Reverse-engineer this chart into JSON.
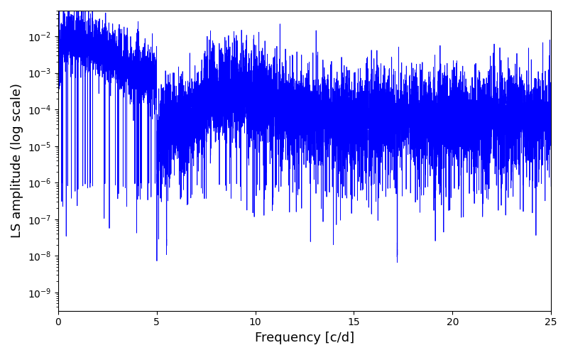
{
  "xlabel": "Frequency [c/d]",
  "ylabel": "LS amplitude (log scale)",
  "xlim": [
    0,
    25
  ],
  "ylim_log_min": -9.5,
  "ylim_log_max": -1.3,
  "line_color": "#0000FF",
  "line_width": 0.6,
  "background_color": "#ffffff",
  "figsize": [
    8.0,
    5.0
  ],
  "dpi": 100,
  "seed": 12345,
  "n_points": 8000,
  "freq_max": 25.0
}
